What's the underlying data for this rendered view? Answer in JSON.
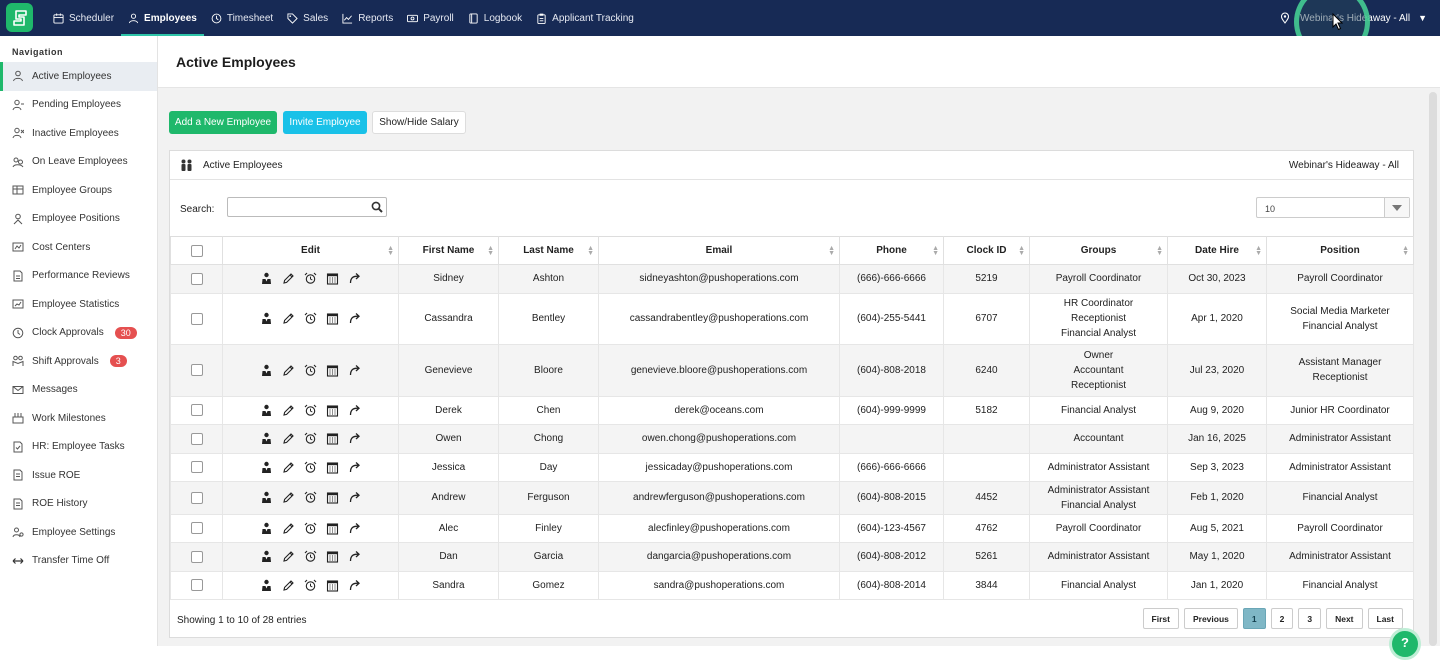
{
  "topnav": {
    "items": [
      {
        "label": "Scheduler",
        "icon": "calendar-icon"
      },
      {
        "label": "Employees",
        "icon": "person-icon",
        "active": true
      },
      {
        "label": "Timesheet",
        "icon": "clock-icon"
      },
      {
        "label": "Sales",
        "icon": "tag-icon"
      },
      {
        "label": "Reports",
        "icon": "chart-icon"
      },
      {
        "label": "Payroll",
        "icon": "money-icon"
      },
      {
        "label": "Logbook",
        "icon": "book-icon"
      },
      {
        "label": "Applicant Tracking",
        "icon": "clipboard-icon"
      }
    ],
    "location": "Webinar's Hideaway - All"
  },
  "sidebar": {
    "heading": "Navigation",
    "items": [
      {
        "label": "Active Employees",
        "active": true
      },
      {
        "label": "Pending Employees"
      },
      {
        "label": "Inactive Employees"
      },
      {
        "label": "On Leave Employees"
      },
      {
        "label": "Employee Groups"
      },
      {
        "label": "Employee Positions"
      },
      {
        "label": "Cost Centers"
      },
      {
        "label": "Performance Reviews"
      },
      {
        "label": "Employee Statistics"
      },
      {
        "label": "Clock Approvals",
        "badge": "30"
      },
      {
        "label": "Shift Approvals",
        "badge": "3"
      },
      {
        "label": "Messages"
      },
      {
        "label": "Work Milestones"
      },
      {
        "label": "HR: Employee Tasks"
      },
      {
        "label": "Issue ROE"
      },
      {
        "label": "ROE History"
      },
      {
        "label": "Employee Settings"
      },
      {
        "label": "Transfer Time Off"
      }
    ]
  },
  "page": {
    "title": "Active Employees",
    "add_button": "Add a New Employee",
    "invite_button": "Invite Employee",
    "salary_button": "Show/Hide Salary"
  },
  "panel": {
    "title": "Active Employees",
    "location": "Webinar's Hideaway - All",
    "search_label": "Search:",
    "search_value": "",
    "page_length": "10"
  },
  "table": {
    "columns": [
      "Edit",
      "First Name",
      "Last Name",
      "Email",
      "Phone",
      "Clock ID",
      "Groups",
      "Date Hire",
      "Position"
    ],
    "rows": [
      {
        "first": "Sidney",
        "last": "Ashton",
        "email": "sidneyashton@pushoperations.com",
        "phone": "(666)-666-6666",
        "clock": "5219",
        "groups": "Payroll Coordinator",
        "hire": "Oct 30, 2023",
        "position": "Payroll Coordinator"
      },
      {
        "first": "Cassandra",
        "last": "Bentley",
        "email": "cassandrabentley@pushoperations.com",
        "phone": "(604)-255-5441",
        "clock": "6707",
        "groups": "HR Coordinator\nReceptionist\nFinancial Analyst",
        "hire": "Apr 1, 2020",
        "position": "Social Media Marketer\nFinancial Analyst"
      },
      {
        "first": "Genevieve",
        "last": "Bloore",
        "email": "genevieve.bloore@pushoperations.com",
        "phone": "(604)-808-2018",
        "clock": "6240",
        "groups": "Owner\nAccountant\nReceptionist",
        "hire": "Jul 23, 2020",
        "position": "Assistant Manager\nReceptionist"
      },
      {
        "first": "Derek",
        "last": "Chen",
        "email": "derek@oceans.com",
        "phone": "(604)-999-9999",
        "clock": "5182",
        "groups": "Financial Analyst",
        "hire": "Aug 9, 2020",
        "position": "Junior HR Coordinator"
      },
      {
        "first": "Owen",
        "last": "Chong",
        "email": "owen.chong@pushoperations.com",
        "phone": "",
        "clock": "",
        "groups": "Accountant",
        "hire": "Jan 16, 2025",
        "position": "Administrator Assistant"
      },
      {
        "first": "Jessica",
        "last": "Day",
        "email": "jessicaday@pushoperations.com",
        "phone": "(666)-666-6666",
        "clock": "",
        "groups": "Administrator Assistant",
        "hire": "Sep 3, 2023",
        "position": "Administrator Assistant"
      },
      {
        "first": "Andrew",
        "last": "Ferguson",
        "email": "andrewferguson@pushoperations.com",
        "phone": "(604)-808-2015",
        "clock": "4452",
        "groups": "Administrator Assistant\nFinancial Analyst",
        "hire": "Feb 1, 2020",
        "position": "Financial Analyst"
      },
      {
        "first": "Alec",
        "last": "Finley",
        "email": "alecfinley@pushoperations.com",
        "phone": "(604)-123-4567",
        "clock": "4762",
        "groups": "Payroll Coordinator",
        "hire": "Aug 5, 2021",
        "position": "Payroll Coordinator"
      },
      {
        "first": "Dan",
        "last": "Garcia",
        "email": "dangarcia@pushoperations.com",
        "phone": "(604)-808-2012",
        "clock": "5261",
        "groups": "Administrator Assistant",
        "hire": "May 1, 2020",
        "position": "Administrator Assistant"
      },
      {
        "first": "Sandra",
        "last": "Gomez",
        "email": "sandra@pushoperations.com",
        "phone": "(604)-808-2014",
        "clock": "3844",
        "groups": "Financial Analyst",
        "hire": "Jan 1, 2020",
        "position": "Financial Analyst"
      }
    ]
  },
  "footer": {
    "info": "Showing 1 to 10 of 28 entries",
    "pager": [
      "First",
      "Previous",
      "1",
      "2",
      "3",
      "Next",
      "Last"
    ],
    "current_page": "1"
  },
  "help_label": "?",
  "colors": {
    "topbar": "#172a55",
    "accent_green": "#1fb86b",
    "accent_cyan": "#19c1e8",
    "badge_red": "#e55050"
  }
}
